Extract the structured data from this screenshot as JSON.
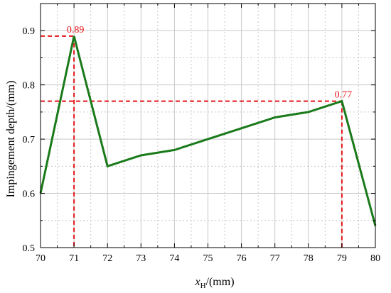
{
  "chart_data": {
    "type": "line",
    "title": "",
    "xlabel": {
      "main": "x",
      "subscript": "H",
      "unit": "/(mm)"
    },
    "ylabel": "Impingement depth/(mm)",
    "xlim": [
      70,
      80
    ],
    "ylim": [
      0.5,
      0.95
    ],
    "x_ticks": [
      70,
      71,
      72,
      73,
      74,
      75,
      76,
      77,
      78,
      79,
      80
    ],
    "y_ticks": [
      0.5,
      0.6,
      0.7,
      0.8,
      0.9
    ],
    "y_tick_labels": [
      "0.5",
      "0.6",
      "0.7",
      "0.8",
      "0.9"
    ],
    "grid": true,
    "series": [
      {
        "color": "#1a7a1a",
        "x": [
          70,
          71,
          72,
          73,
          74,
          75,
          76,
          77,
          78,
          79,
          80
        ],
        "values": [
          0.6,
          0.89,
          0.65,
          0.67,
          0.68,
          0.7,
          0.72,
          0.74,
          0.75,
          0.77,
          0.54
        ]
      }
    ],
    "annotations": [
      {
        "text": "0.89",
        "x": 71,
        "y": 0.89,
        "color": "#e8141a"
      },
      {
        "text": "0.77",
        "x": 79,
        "y": 0.77,
        "color": "#e8141a"
      }
    ]
  }
}
